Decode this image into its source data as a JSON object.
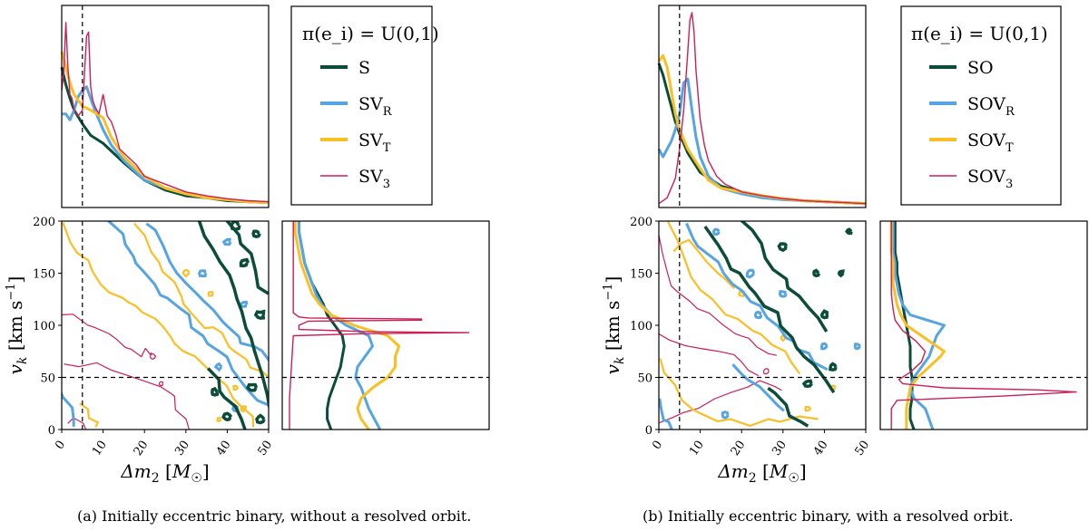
{
  "colors": {
    "dark_green": "#0b4d3a",
    "light_blue": "#56a5e2",
    "yellow": "#fbbf26",
    "crimson": "#cc1f55"
  },
  "chart_data": [
    {
      "type": "scatter",
      "panel": "a",
      "caption": "(a) Initially eccentric binary, without a resolved orbit.",
      "xlabel": "Δm₂ [M☉]",
      "ylabel": "v_k [km s⁻¹]",
      "xlim": [
        0,
        50
      ],
      "ylim": [
        0,
        200
      ],
      "xticks": [
        "0",
        "10",
        "20",
        "30",
        "40",
        "50"
      ],
      "yticks": [
        "0",
        "50",
        "100",
        "150",
        "200"
      ],
      "reference_lines": {
        "x": 5,
        "y": 50
      },
      "legend_title": "π(e_i) = U(0,1)",
      "legend": [
        {
          "main": "S",
          "sub": "",
          "color": "#0b4d3a",
          "width": 4
        },
        {
          "main": "SV",
          "sub": "R",
          "color": "#56a5e2",
          "width": 4
        },
        {
          "main": "SV",
          "sub": "T",
          "color": "#fbbf26",
          "width": 4
        },
        {
          "main": "SV",
          "sub": "3",
          "color": "#cc1f55",
          "width": 1.4
        }
      ],
      "top_marginal": {
        "description": "distribution of Δm₂ (relative)",
        "series": [
          {
            "name": "S",
            "x": [
              0,
              1,
              2,
              3,
              5,
              7,
              10,
              15,
              20,
              25,
              30,
              35,
              40,
              45,
              50
            ],
            "y": [
              0.72,
              0.63,
              0.56,
              0.5,
              0.43,
              0.37,
              0.33,
              0.23,
              0.14,
              0.09,
              0.06,
              0.05,
              0.035,
              0.03,
              0.025
            ]
          },
          {
            "name": "SV_R",
            "x": [
              0,
              1,
              2,
              3,
              4,
              5,
              6,
              7,
              8,
              10,
              12,
              15,
              20,
              25,
              30,
              35,
              40,
              45,
              50
            ],
            "y": [
              0.48,
              0.48,
              0.45,
              0.5,
              0.57,
              0.6,
              0.62,
              0.56,
              0.5,
              0.4,
              0.32,
              0.24,
              0.14,
              0.1,
              0.07,
              0.05,
              0.04,
              0.03,
              0.025
            ]
          },
          {
            "name": "SV_T",
            "x": [
              0,
              1,
              2,
              3,
              5,
              7,
              10,
              12,
              15,
              20,
              25,
              30,
              35,
              40,
              45,
              50
            ],
            "y": [
              0.8,
              0.72,
              0.64,
              0.58,
              0.52,
              0.5,
              0.46,
              0.36,
              0.26,
              0.16,
              0.1,
              0.07,
              0.05,
              0.04,
              0.03,
              0.025
            ]
          },
          {
            "name": "SV_3",
            "x": [
              0,
              0.5,
              1,
              1.5,
              2,
              2.5,
              3,
              4,
              5,
              6,
              6.5,
              7,
              7.5,
              8,
              9,
              10,
              11,
              12,
              13,
              14,
              15,
              18,
              20,
              25,
              30,
              35,
              40,
              45,
              50
            ],
            "y": [
              0.6,
              0.7,
              0.95,
              0.72,
              0.58,
              0.56,
              0.5,
              0.47,
              0.5,
              0.88,
              0.9,
              0.62,
              0.55,
              0.52,
              0.48,
              0.58,
              0.47,
              0.44,
              0.38,
              0.3,
              0.28,
              0.22,
              0.16,
              0.12,
              0.08,
              0.06,
              0.045,
              0.035,
              0.03
            ]
          }
        ]
      },
      "right_marginal": {
        "description": "distribution of v_k (relative)",
        "series": [
          {
            "name": "S",
            "y": [
              0,
              10,
              20,
              30,
              40,
              50,
              60,
              70,
              80,
              90,
              100,
              110,
              120,
              130,
              140,
              150,
              160,
              170,
              180,
              190,
              200
            ],
            "v": [
              0.22,
              0.2,
              0.2,
              0.21,
              0.23,
              0.25,
              0.27,
              0.28,
              0.29,
              0.28,
              0.24,
              0.2,
              0.18,
              0.15,
              0.12,
              0.1,
              0.08,
              0.07,
              0.06,
              0.05,
              0.05
            ]
          },
          {
            "name": "SV_R",
            "y": [
              0,
              10,
              20,
              30,
              40,
              50,
              60,
              70,
              80,
              90,
              100,
              110,
              120,
              130,
              140,
              150,
              160,
              170,
              180,
              190,
              200
            ],
            "v": [
              0.48,
              0.45,
              0.42,
              0.4,
              0.38,
              0.35,
              0.36,
              0.4,
              0.44,
              0.42,
              0.3,
              0.22,
              0.17,
              0.14,
              0.12,
              0.1,
              0.08,
              0.07,
              0.06,
              0.05,
              0.05
            ]
          },
          {
            "name": "SV_T",
            "y": [
              0,
              10,
              20,
              30,
              40,
              50,
              60,
              70,
              80,
              90,
              100,
              110,
              120,
              130,
              140,
              150,
              160,
              170,
              180,
              190,
              200
            ],
            "v": [
              0.42,
              0.38,
              0.36,
              0.38,
              0.44,
              0.52,
              0.56,
              0.56,
              0.58,
              0.52,
              0.34,
              0.22,
              0.16,
              0.12,
              0.1,
              0.08,
              0.06,
              0.05,
              0.04,
              0.03,
              0.03
            ]
          },
          {
            "name": "SV_3",
            "y": [
              0,
              30,
              60,
              90,
              92,
              93,
              94,
              96,
              100,
              104,
              105,
              106,
              107,
              108,
              112,
              130,
              160,
              200
            ],
            "v": [
              0,
              0,
              0.01,
              0.02,
              0.4,
              0.95,
              0.4,
              0.05,
              0.05,
              0.1,
              0.7,
              0.7,
              0.1,
              0.05,
              0.02,
              0.02,
              0.02,
              0.02
            ]
          }
        ]
      }
    },
    {
      "type": "scatter",
      "panel": "b",
      "caption": "(b) Initially eccentric binary, with a resolved orbit.",
      "xlabel": "Δm₂ [M☉]",
      "ylabel": "v_k [km s⁻¹]",
      "xlim": [
        0,
        50
      ],
      "ylim": [
        0,
        200
      ],
      "xticks": [
        "0",
        "10",
        "20",
        "30",
        "40",
        "50"
      ],
      "yticks": [
        "0",
        "50",
        "100",
        "150",
        "200"
      ],
      "reference_lines": {
        "x": 5,
        "y": 50
      },
      "legend_title": "π(e_i) = U(0,1)",
      "legend": [
        {
          "main": "SO",
          "sub": "",
          "color": "#0b4d3a",
          "width": 4
        },
        {
          "main": "SOV",
          "sub": "R",
          "color": "#56a5e2",
          "width": 4
        },
        {
          "main": "SOV",
          "sub": "T",
          "color": "#fbbf26",
          "width": 4
        },
        {
          "main": "SOV",
          "sub": "3",
          "color": "#cc1f55",
          "width": 1.4
        }
      ],
      "top_marginal": {
        "description": "distribution of Δm₂ (relative)",
        "series": [
          {
            "name": "SO",
            "x": [
              0,
              1,
              2,
              3,
              4,
              5,
              7,
              10,
              15,
              20,
              25,
              30,
              35,
              40,
              45,
              50
            ],
            "y": [
              0.74,
              0.68,
              0.6,
              0.52,
              0.44,
              0.38,
              0.28,
              0.18,
              0.11,
              0.08,
              0.06,
              0.045,
              0.035,
              0.03,
              0.025,
              0.02
            ]
          },
          {
            "name": "SOV_R",
            "x": [
              0,
              1,
              2,
              3,
              4,
              5,
              6,
              7,
              8,
              9,
              10,
              12,
              15,
              20,
              25,
              30,
              35,
              40,
              45,
              50
            ],
            "y": [
              0.3,
              0.26,
              0.3,
              0.34,
              0.4,
              0.48,
              0.64,
              0.66,
              0.5,
              0.36,
              0.26,
              0.16,
              0.1,
              0.07,
              0.05,
              0.04,
              0.035,
              0.03,
              0.025,
              0.02
            ]
          },
          {
            "name": "SOV_T",
            "x": [
              0,
              1,
              2,
              3,
              4,
              5,
              7,
              10,
              12,
              15,
              20,
              25,
              30,
              35,
              40,
              45,
              50
            ],
            "y": [
              0.75,
              0.78,
              0.72,
              0.6,
              0.48,
              0.4,
              0.3,
              0.2,
              0.14,
              0.1,
              0.08,
              0.06,
              0.045,
              0.035,
              0.03,
              0.025,
              0.02
            ]
          },
          {
            "name": "SOV_3",
            "x": [
              0,
              2,
              4,
              5,
              6,
              7,
              7.5,
              8,
              8.5,
              9,
              10,
              11,
              12,
              14,
              16,
              20,
              25,
              30,
              35,
              40,
              45,
              50
            ],
            "y": [
              0.02,
              0.05,
              0.15,
              0.3,
              0.5,
              0.8,
              0.96,
              1.0,
              0.9,
              0.7,
              0.45,
              0.32,
              0.24,
              0.16,
              0.12,
              0.08,
              0.06,
              0.045,
              0.035,
              0.03,
              0.025,
              0.02
            ]
          }
        ]
      },
      "right_marginal": {
        "description": "distribution of v_k (relative)",
        "series": [
          {
            "name": "SO",
            "y": [
              0,
              10,
              20,
              30,
              40,
              50,
              60,
              70,
              80,
              90,
              100,
              110,
              120,
              130,
              140,
              150,
              160,
              170,
              180,
              190,
              200
            ],
            "v": [
              0.14,
              0.12,
              0.12,
              0.13,
              0.13,
              0.13,
              0.12,
              0.12,
              0.12,
              0.11,
              0.1,
              0.09,
              0.08,
              0.07,
              0.06,
              0.05,
              0.05,
              0.04,
              0.04,
              0.04,
              0.04
            ]
          },
          {
            "name": "SOV_R",
            "y": [
              0,
              10,
              20,
              30,
              40,
              50,
              60,
              70,
              80,
              90,
              100,
              110,
              120,
              130,
              140,
              150,
              160,
              170,
              180,
              190,
              200
            ],
            "v": [
              0.24,
              0.22,
              0.2,
              0.14,
              0.12,
              0.14,
              0.18,
              0.22,
              0.24,
              0.26,
              0.3,
              0.12,
              0.08,
              0.06,
              0.05,
              0.04,
              0.04,
              0.03,
              0.03,
              0.03,
              0.03
            ]
          },
          {
            "name": "SOV_T",
            "y": [
              0,
              10,
              20,
              30,
              40,
              50,
              60,
              70,
              75,
              80,
              90,
              100,
              110,
              120,
              130,
              140,
              150,
              160,
              170,
              180,
              190,
              200
            ],
            "v": [
              0.1,
              0.1,
              0.1,
              0.11,
              0.12,
              0.16,
              0.22,
              0.28,
              0.3,
              0.26,
              0.18,
              0.1,
              0.07,
              0.05,
              0.04,
              0.03,
              0.03,
              0.03,
              0.02,
              0.02,
              0.02,
              0.02
            ]
          },
          {
            "name": "SOV_3",
            "y": [
              0,
              10,
              20,
              28,
              32,
              36,
              38,
              40,
              44,
              48,
              55,
              65,
              75,
              85,
              95,
              105,
              115,
              130,
              150,
              200
            ],
            "v": [
              0.02,
              0.02,
              0.02,
              0.05,
              0.6,
              1.0,
              0.8,
              0.3,
              0.08,
              0.06,
              0.12,
              0.18,
              0.2,
              0.15,
              0.08,
              0.04,
              0.03,
              0.02,
              0.02,
              0.02
            ]
          }
        ]
      }
    }
  ]
}
